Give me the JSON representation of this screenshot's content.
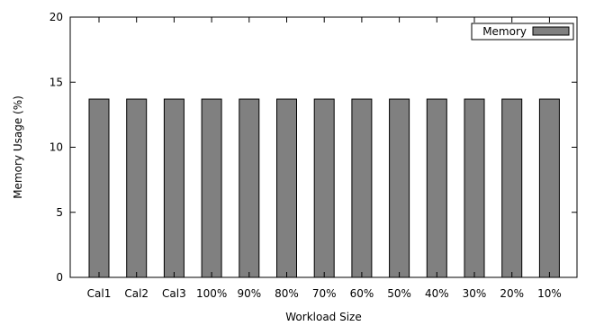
{
  "chart_data": {
    "type": "bar",
    "xlabel": "Workload Size",
    "ylabel": "Memory Usage (%)",
    "ylim": [
      0,
      20
    ],
    "yticks": [
      0,
      5,
      10,
      15,
      20
    ],
    "grid": false,
    "legend_position": "top-right",
    "categories": [
      "Cal1",
      "Cal2",
      "Cal3",
      "100%",
      "90%",
      "80%",
      "70%",
      "60%",
      "50%",
      "40%",
      "30%",
      "20%",
      "10%"
    ],
    "series": [
      {
        "name": "Memory",
        "color": "#808080",
        "values": [
          13.7,
          13.7,
          13.7,
          13.7,
          13.7,
          13.7,
          13.7,
          13.7,
          13.7,
          13.7,
          13.7,
          13.7,
          13.7
        ]
      }
    ]
  }
}
